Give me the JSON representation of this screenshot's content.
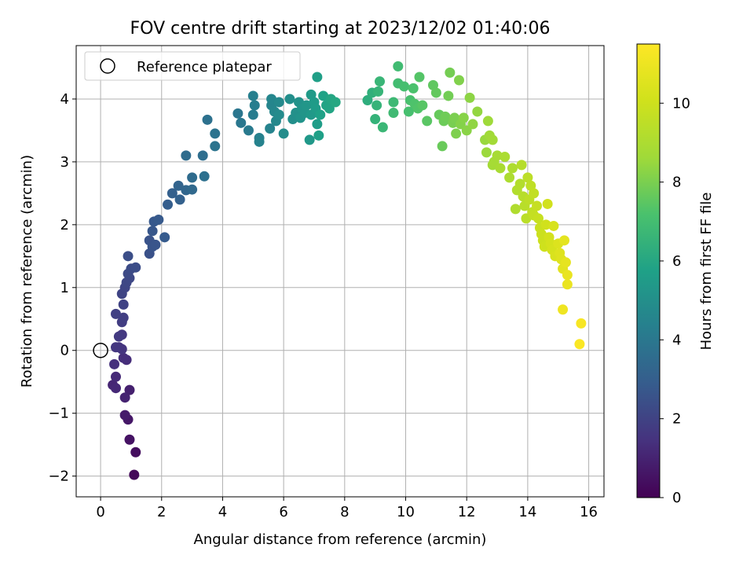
{
  "chart_data": {
    "type": "scatter",
    "title": "FOV centre drift starting at 2023/12/02 01:40:06",
    "xlabel": "Angular distance from reference (arcmin)",
    "ylabel": "Rotation from reference (arcmin)",
    "xlim": [
      -0.8,
      16.5
    ],
    "ylim": [
      -2.33,
      4.85
    ],
    "xticks": [
      0,
      2,
      4,
      6,
      8,
      10,
      12,
      14,
      16
    ],
    "yticks": [
      -2,
      -1,
      0,
      1,
      2,
      3,
      4
    ],
    "grid": true,
    "legend": {
      "placement": "top-left",
      "entries": [
        "Reference platepar"
      ]
    },
    "reference_point": {
      "x": 0,
      "y": 0
    },
    "colorbar": {
      "label": "Hours from first FF file",
      "colormap": "viridis",
      "range": [
        0,
        11.5
      ],
      "ticks": [
        0,
        2,
        4,
        6,
        8,
        10
      ]
    },
    "points": [
      [
        1.1,
        -1.98,
        0.2
      ],
      [
        1.15,
        -1.62,
        0.35
      ],
      [
        0.95,
        -1.42,
        0.5
      ],
      [
        0.9,
        -1.1,
        0.65
      ],
      [
        0.8,
        -1.03,
        0.8
      ],
      [
        0.95,
        -0.63,
        0.9
      ],
      [
        0.8,
        -0.75,
        1.0
      ],
      [
        0.4,
        -0.55,
        1.1
      ],
      [
        0.5,
        -0.6,
        1.15
      ],
      [
        0.5,
        -0.42,
        1.2
      ],
      [
        0.85,
        -0.15,
        1.3
      ],
      [
        0.75,
        -0.12,
        1.35
      ],
      [
        0.45,
        -0.22,
        1.4
      ],
      [
        0.6,
        0.05,
        1.5
      ],
      [
        0.7,
        0.02,
        1.55
      ],
      [
        0.5,
        0.05,
        1.6
      ],
      [
        0.7,
        0.25,
        1.65
      ],
      [
        0.6,
        0.22,
        1.7
      ],
      [
        0.7,
        0.45,
        1.8
      ],
      [
        0.75,
        0.52,
        1.85
      ],
      [
        0.5,
        0.58,
        1.9
      ],
      [
        0.75,
        0.73,
        2.0
      ],
      [
        0.7,
        0.9,
        2.05
      ],
      [
        0.8,
        1.0,
        2.1
      ],
      [
        0.85,
        1.08,
        2.15
      ],
      [
        0.95,
        1.15,
        2.2
      ],
      [
        0.9,
        1.22,
        2.25
      ],
      [
        1.0,
        1.3,
        2.3
      ],
      [
        1.15,
        1.32,
        2.35
      ],
      [
        0.9,
        1.5,
        2.4
      ],
      [
        1.6,
        1.54,
        2.5
      ],
      [
        1.6,
        1.75,
        2.55
      ],
      [
        1.7,
        1.65,
        2.6
      ],
      [
        1.8,
        1.68,
        2.65
      ],
      [
        1.7,
        1.9,
        2.7
      ],
      [
        1.75,
        2.05,
        2.75
      ],
      [
        1.9,
        2.08,
        2.8
      ],
      [
        2.1,
        1.8,
        2.85
      ],
      [
        2.2,
        2.32,
        2.95
      ],
      [
        2.35,
        2.5,
        3.05
      ],
      [
        2.6,
        2.4,
        3.1
      ],
      [
        2.55,
        2.62,
        3.2
      ],
      [
        2.8,
        2.55,
        3.3
      ],
      [
        3.0,
        2.56,
        3.4
      ],
      [
        3.0,
        2.75,
        3.5
      ],
      [
        2.8,
        3.1,
        3.55
      ],
      [
        3.35,
        3.1,
        3.6
      ],
      [
        3.4,
        2.77,
        3.7
      ],
      [
        3.5,
        3.67,
        3.75
      ],
      [
        3.75,
        3.45,
        3.8
      ],
      [
        3.75,
        3.25,
        3.85
      ],
      [
        4.5,
        3.77,
        3.95
      ],
      [
        4.6,
        3.62,
        4.0
      ],
      [
        4.85,
        3.5,
        4.1
      ],
      [
        5.0,
        3.75,
        4.2
      ],
      [
        5.05,
        3.9,
        4.25
      ],
      [
        5.0,
        4.05,
        4.3
      ],
      [
        5.2,
        3.38,
        4.4
      ],
      [
        5.2,
        3.32,
        4.45
      ],
      [
        5.55,
        3.53,
        4.5
      ],
      [
        5.6,
        3.9,
        4.55
      ],
      [
        5.6,
        4.0,
        4.6
      ],
      [
        5.7,
        3.8,
        4.65
      ],
      [
        5.75,
        3.65,
        4.7
      ],
      [
        5.85,
        3.95,
        4.75
      ],
      [
        5.85,
        3.75,
        4.8
      ],
      [
        6.0,
        3.45,
        4.85
      ],
      [
        6.2,
        4.0,
        4.95
      ],
      [
        6.3,
        3.68,
        5.0
      ],
      [
        6.4,
        3.78,
        5.05
      ],
      [
        6.5,
        3.95,
        5.1
      ],
      [
        6.55,
        3.7,
        5.15
      ],
      [
        6.6,
        3.85,
        5.2
      ],
      [
        6.7,
        3.78,
        5.25
      ],
      [
        6.75,
        3.9,
        5.3
      ],
      [
        6.85,
        3.35,
        5.35
      ],
      [
        6.9,
        3.75,
        5.4
      ],
      [
        6.9,
        4.07,
        5.45
      ],
      [
        7.0,
        3.95,
        5.5
      ],
      [
        7.05,
        3.85,
        5.55
      ],
      [
        7.1,
        3.6,
        5.6
      ],
      [
        7.1,
        4.35,
        5.65
      ],
      [
        7.15,
        3.42,
        5.7
      ],
      [
        7.2,
        3.75,
        5.75
      ],
      [
        7.3,
        4.05,
        5.8
      ],
      [
        7.4,
        3.9,
        5.85
      ],
      [
        7.5,
        3.85,
        5.9
      ],
      [
        7.55,
        4.0,
        5.95
      ],
      [
        7.7,
        3.95,
        6.0
      ],
      [
        8.75,
        3.98,
        6.3
      ],
      [
        8.9,
        4.1,
        6.4
      ],
      [
        9.0,
        3.68,
        6.5
      ],
      [
        9.05,
        3.9,
        6.55
      ],
      [
        9.1,
        4.12,
        6.6
      ],
      [
        9.15,
        4.28,
        6.65
      ],
      [
        9.25,
        3.55,
        6.7
      ],
      [
        9.6,
        3.95,
        6.8
      ],
      [
        9.6,
        3.78,
        6.85
      ],
      [
        9.75,
        4.52,
        6.9
      ],
      [
        9.75,
        4.25,
        6.95
      ],
      [
        9.95,
        4.2,
        7.05
      ],
      [
        10.1,
        3.8,
        7.1
      ],
      [
        10.15,
        3.98,
        7.15
      ],
      [
        10.25,
        4.17,
        7.2
      ],
      [
        10.3,
        3.92,
        7.25
      ],
      [
        10.4,
        3.85,
        7.3
      ],
      [
        10.45,
        4.35,
        7.35
      ],
      [
        10.55,
        3.9,
        7.4
      ],
      [
        10.7,
        3.65,
        7.45
      ],
      [
        10.9,
        4.22,
        7.55
      ],
      [
        11.0,
        4.1,
        7.6
      ],
      [
        11.1,
        3.75,
        7.65
      ],
      [
        11.2,
        3.25,
        7.7
      ],
      [
        11.25,
        3.65,
        7.75
      ],
      [
        11.3,
        3.72,
        7.8
      ],
      [
        11.4,
        4.05,
        7.85
      ],
      [
        11.45,
        4.42,
        7.9
      ],
      [
        11.55,
        3.62,
        7.95
      ],
      [
        11.6,
        3.7,
        8.0
      ],
      [
        11.65,
        3.45,
        8.05
      ],
      [
        11.75,
        4.3,
        8.1
      ],
      [
        11.8,
        3.6,
        8.15
      ],
      [
        11.9,
        3.7,
        8.2
      ],
      [
        12.0,
        3.5,
        8.25
      ],
      [
        12.1,
        4.02,
        8.3
      ],
      [
        12.2,
        3.6,
        8.35
      ],
      [
        12.35,
        3.8,
        8.4
      ],
      [
        12.6,
        3.35,
        8.5
      ],
      [
        12.65,
        3.15,
        8.55
      ],
      [
        12.7,
        3.65,
        8.6
      ],
      [
        12.75,
        3.42,
        8.65
      ],
      [
        12.85,
        3.35,
        8.7
      ],
      [
        12.85,
        2.95,
        8.75
      ],
      [
        12.9,
        3.0,
        8.8
      ],
      [
        13.0,
        3.1,
        8.85
      ],
      [
        13.1,
        2.9,
        8.9
      ],
      [
        13.25,
        3.08,
        8.95
      ],
      [
        13.4,
        2.75,
        9.0
      ],
      [
        13.5,
        2.9,
        9.05
      ],
      [
        13.6,
        2.25,
        9.1
      ],
      [
        13.65,
        2.55,
        9.15
      ],
      [
        13.75,
        2.65,
        9.2
      ],
      [
        13.8,
        2.95,
        9.25
      ],
      [
        13.85,
        2.45,
        9.3
      ],
      [
        13.9,
        2.3,
        9.35
      ],
      [
        13.95,
        2.1,
        9.4
      ],
      [
        14.0,
        2.75,
        9.45
      ],
      [
        14.05,
        2.4,
        9.5
      ],
      [
        14.1,
        2.62,
        9.55
      ],
      [
        14.15,
        2.2,
        9.6
      ],
      [
        14.2,
        2.5,
        9.65
      ],
      [
        14.2,
        2.15,
        9.7
      ],
      [
        14.3,
        2.3,
        9.75
      ],
      [
        14.35,
        2.1,
        9.8
      ],
      [
        14.4,
        1.95,
        9.85
      ],
      [
        14.45,
        1.85,
        9.9
      ],
      [
        14.5,
        1.75,
        9.95
      ],
      [
        14.55,
        1.65,
        10.0
      ],
      [
        14.6,
        2.0,
        10.05
      ],
      [
        14.65,
        2.33,
        10.1
      ],
      [
        14.7,
        1.8,
        10.15
      ],
      [
        14.75,
        1.7,
        10.2
      ],
      [
        14.8,
        1.6,
        10.25
      ],
      [
        14.85,
        1.98,
        10.3
      ],
      [
        14.9,
        1.5,
        10.35
      ],
      [
        15.0,
        1.7,
        10.45
      ],
      [
        15.05,
        1.55,
        10.5
      ],
      [
        15.1,
        1.45,
        10.55
      ],
      [
        15.15,
        1.3,
        10.65
      ],
      [
        15.2,
        1.75,
        10.7
      ],
      [
        15.25,
        1.4,
        10.75
      ],
      [
        15.3,
        1.2,
        10.85
      ],
      [
        15.3,
        1.05,
        10.9
      ],
      [
        15.15,
        0.65,
        11.05
      ],
      [
        15.75,
        0.43,
        11.3
      ],
      [
        15.7,
        0.1,
        11.4
      ]
    ]
  }
}
